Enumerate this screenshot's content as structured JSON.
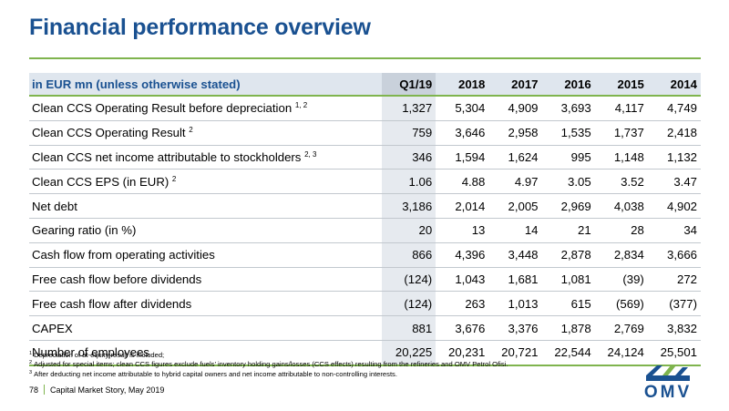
{
  "slide": {
    "title": "Financial performance overview"
  },
  "table": {
    "unit_label": "in EUR mn (unless otherwise stated)",
    "columns": [
      "Q1/19",
      "2018",
      "2017",
      "2016",
      "2015",
      "2014"
    ],
    "rows": [
      {
        "label": "Clean CCS Operating Result before depreciation",
        "note": "1, 2",
        "values": [
          "1,327",
          "5,304",
          "4,909",
          "3,693",
          "4,117",
          "4,749"
        ]
      },
      {
        "label": "Clean CCS Operating Result",
        "note": "2",
        "values": [
          "759",
          "3,646",
          "2,958",
          "1,535",
          "1,737",
          "2,418"
        ]
      },
      {
        "label": "Clean CCS net income attributable to stockholders",
        "note": "2, 3",
        "values": [
          "346",
          "1,594",
          "1,624",
          "995",
          "1,148",
          "1,132"
        ]
      },
      {
        "label": "Clean CCS EPS (in EUR)",
        "note": "2",
        "values": [
          "1.06",
          "4.88",
          "4.97",
          "3.05",
          "3.52",
          "3.47"
        ]
      },
      {
        "label": "Net debt",
        "note": "",
        "values": [
          "3,186",
          "2,014",
          "2,005",
          "2,969",
          "4,038",
          "4,902"
        ]
      },
      {
        "label": "Gearing ratio (in %)",
        "note": "",
        "values": [
          "20",
          "13",
          "14",
          "21",
          "28",
          "34"
        ]
      },
      {
        "label": "Cash flow from operating activities",
        "note": "",
        "values": [
          "866",
          "4,396",
          "3,448",
          "2,878",
          "2,834",
          "3,666"
        ]
      },
      {
        "label": "Free cash flow before dividends",
        "note": "",
        "values": [
          "(124)",
          "1,043",
          "1,681",
          "1,081",
          "(39)",
          "272"
        ]
      },
      {
        "label": "Free cash flow after dividends",
        "note": "",
        "values": [
          "(124)",
          "263",
          "1,013",
          "615",
          "(569)",
          "(377)"
        ]
      },
      {
        "label": "CAPEX",
        "note": "",
        "values": [
          "881",
          "3,676",
          "3,376",
          "1,878",
          "2,769",
          "3,832"
        ]
      },
      {
        "label": "Number of employees",
        "note": "",
        "values": [
          "20,225",
          "20,231",
          "20,721",
          "22,544",
          "24,124",
          "25,501"
        ]
      }
    ]
  },
  "footnotes": [
    {
      "mark": "1",
      "text": "Depreciation of at-equity result is included;"
    },
    {
      "mark": "2",
      "text": "Adjusted for special items; clean CCS figures exclude fuels’ inventory holding gains/losses (CCS effects) resulting from the refineries and OMV Petrol Ofisi."
    },
    {
      "mark": "3",
      "text": "After deducting net income attributable to hybrid capital owners and net income attributable to non-controlling interests."
    }
  ],
  "footer": {
    "page_number": "78",
    "text": "Capital Market Story, May 2019"
  },
  "logo": {
    "text": "OMV",
    "colors": {
      "blue": "#1a5191",
      "green": "#7fb44e"
    }
  },
  "colors": {
    "title": "#1a5191",
    "accent_rule": "#7fb44e",
    "header_fill": "#dfe6ee",
    "highlight_column_fill": "#e6eaef"
  }
}
